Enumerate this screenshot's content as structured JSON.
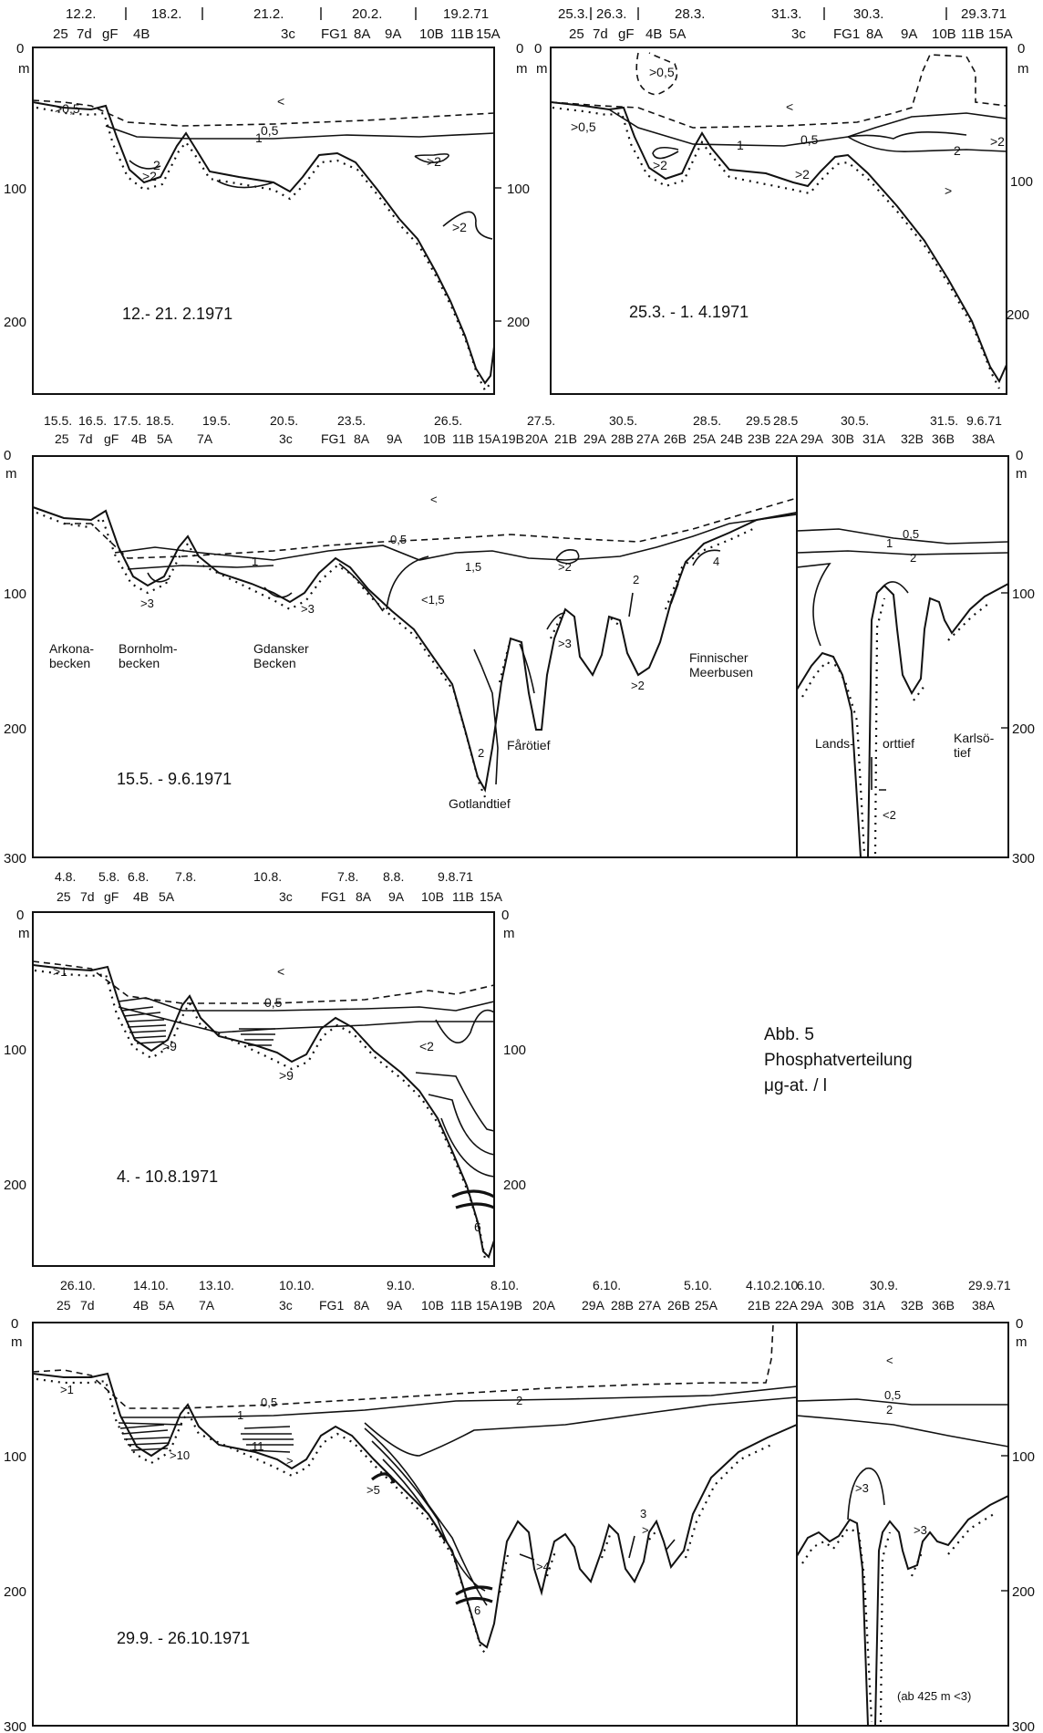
{
  "units": {
    "depth": "m"
  },
  "panels": [
    {
      "id": "feb",
      "period": "12.- 21. 2.1971",
      "dates": [
        "12.2.",
        "18.2.",
        "21.2.",
        "20.2.",
        "19.2.71"
      ],
      "stations": [
        "25",
        "7d",
        "gF",
        "4B",
        "3c",
        "FG1",
        "8A",
        "9A",
        "10B",
        "11B",
        "15A"
      ],
      "depth_ticks": [
        "0",
        "100",
        "200"
      ],
      "contours": [
        "0,5",
        "1",
        "2",
        ">0,5",
        ">2",
        ">2",
        ">2",
        "<"
      ]
    },
    {
      "id": "mar",
      "period": "25.3. - 1. 4.1971",
      "dates": [
        "25.3.",
        "26.3.",
        "28.3.",
        "31.3.",
        "30.3.",
        "29.3.71"
      ],
      "stations": [
        "25",
        "7d",
        "gF",
        "4B",
        "5A",
        "3c",
        "FG1",
        "8A",
        "9A",
        "10B",
        "11B",
        "15A"
      ],
      "depth_ticks": [
        "0",
        "100",
        "200"
      ],
      "contours": [
        "0,5",
        "1",
        "2",
        ">0,5",
        ">2",
        ">2",
        ">0,5",
        ">2",
        "<",
        ">"
      ]
    },
    {
      "id": "may",
      "period": "15.5. - 9.6.1971",
      "dates": [
        "15.5.",
        "16.5.",
        "17.5.",
        "18.5.",
        "19.5.",
        "20.5.",
        "23.5.",
        "26.5.",
        "27.5.",
        "30.5.",
        "28.5.",
        "29.5",
        "28.5",
        "30.5.",
        "31.5.",
        "9.6.71"
      ],
      "stations": [
        "25",
        "7d",
        "gF",
        "4B",
        "5A",
        "7A",
        "3c",
        "FG1",
        "8A",
        "9A",
        "10B",
        "11B",
        "15A",
        "19B",
        "20A",
        "21B",
        "29A",
        "28B",
        "27A",
        "26B",
        "25A",
        "24B",
        "23B",
        "22A",
        "29A",
        "30B",
        "31A",
        "32B",
        "36B",
        "38A"
      ],
      "depth_ticks": [
        "0",
        "100",
        "200",
        "300"
      ],
      "contours": [
        "0,5",
        "1",
        "1,5",
        "2",
        ">2",
        ">3",
        ">3",
        ">3",
        "<1,5",
        "2",
        ">2",
        "4",
        "<",
        "0,5",
        "1",
        "2",
        "<2"
      ],
      "labels": [
        "Arkona-\nbecken",
        "Bornholm-\nbecken",
        "Gdansker\nBecken",
        "Gotlandtief",
        "Fårötief",
        "Finnischer\nMeerbusen",
        "Lands-",
        "orttief",
        "Karlsö-\ntief"
      ]
    },
    {
      "id": "aug",
      "period": "4. - 10.8.1971",
      "dates": [
        "4.8.",
        "5.8.",
        "6.8.",
        "7.8.",
        "10.8.",
        "7.8.",
        "8.8.",
        "9.8.71"
      ],
      "stations": [
        "25",
        "7d",
        "gF",
        "4B",
        "5A",
        "3c",
        "FG1",
        "8A",
        "9A",
        "10B",
        "11B",
        "15A"
      ],
      "depth_ticks": [
        "0",
        "100",
        "200"
      ],
      "contours": [
        "0,5",
        ">1",
        ">9",
        ">9",
        "<2",
        "6",
        "<"
      ]
    },
    {
      "id": "oct",
      "period": "29.9. - 26.10.1971",
      "dates": [
        "26.10.",
        "14.10.",
        "13.10.",
        "10.10.",
        "9.10.",
        "8.10.",
        "6.10.",
        "5.10.",
        "4.10.",
        "2.10.",
        "6.10.",
        "30.9.",
        "29.9.71"
      ],
      "stations": [
        "25",
        "7d",
        "4B",
        "5A",
        "7A",
        "3c",
        "FG1",
        "8A",
        "9A",
        "10B",
        "11B",
        "15A",
        "19B",
        "20A",
        "29A",
        "28B",
        "27A",
        "26B",
        "25A",
        "21B",
        "22A",
        "29A",
        "30B",
        "31A",
        "32B",
        "36B",
        "38A"
      ],
      "depth_ticks": [
        "0",
        "100",
        "200",
        "300"
      ],
      "contours": [
        "0,5",
        "1",
        "2",
        ">1",
        ">10",
        "11",
        ">",
        ">5",
        "6",
        ">4",
        "3",
        ">",
        "<",
        "0,5",
        "2",
        ">3",
        ">3"
      ],
      "note": "(ab 425 m <3)"
    }
  ],
  "legend": {
    "figure": "Abb. 5",
    "title": "Phosphatverteilung",
    "unit": "μg-at. / l"
  }
}
